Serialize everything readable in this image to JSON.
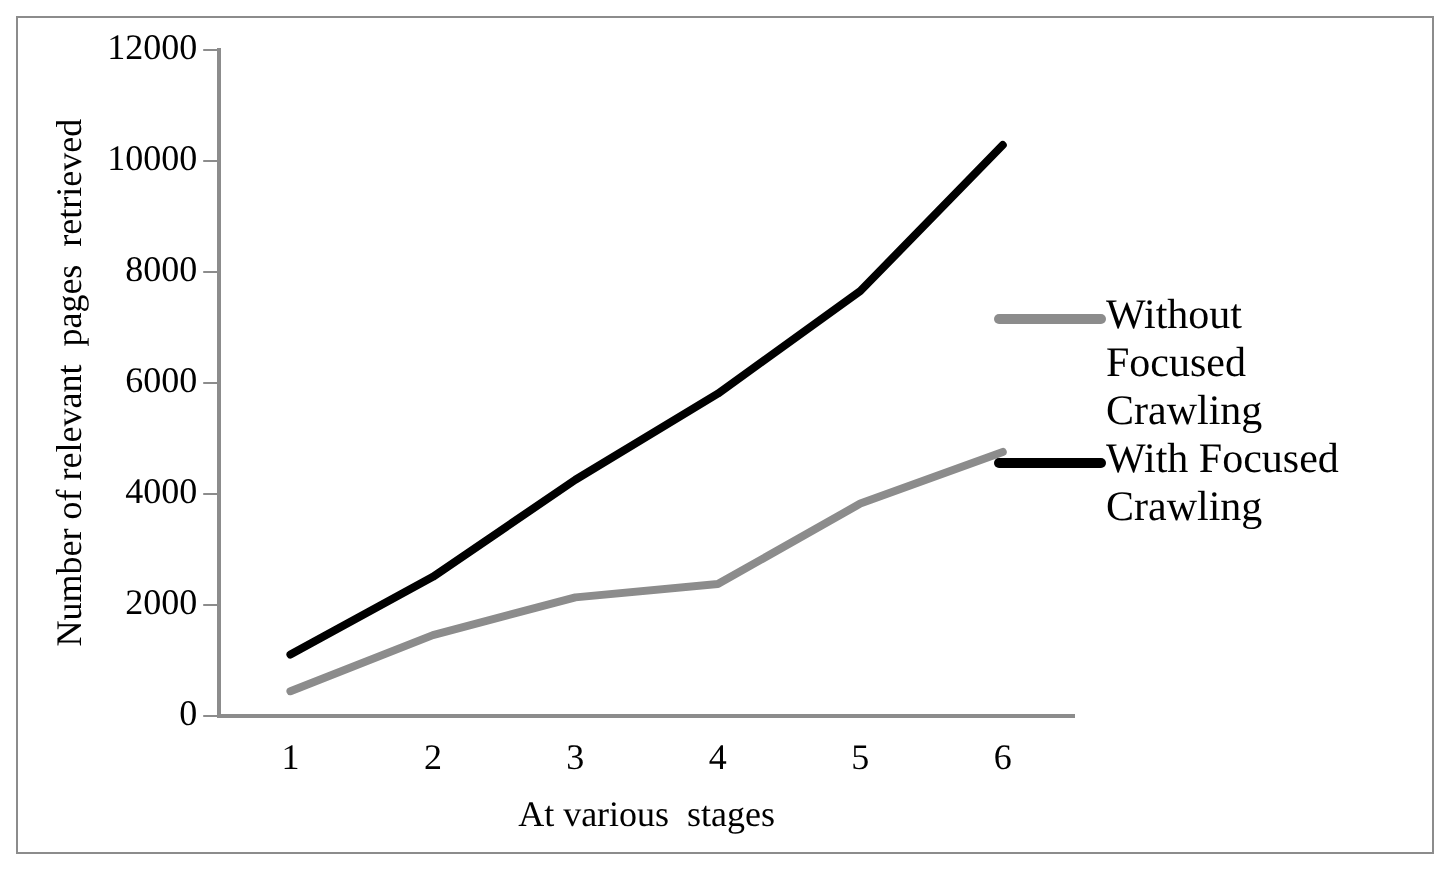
{
  "chart_data": {
    "type": "line",
    "xlabel": "At various  stages",
    "ylabel": "Number of relevant  pages  retrieved",
    "categories": [
      "1",
      "2",
      "3",
      "4",
      "5",
      "6"
    ],
    "series": [
      {
        "name": "Without Focused Crawling",
        "color": "#8c8c8c",
        "values": [
          440,
          1450,
          2130,
          2370,
          3820,
          4750
        ]
      },
      {
        "name": "With Focused Crawling",
        "color": "#000000",
        "values": [
          1100,
          2500,
          4250,
          5800,
          7650,
          10280
        ]
      }
    ],
    "ylim": [
      0,
      12000
    ],
    "yticks": [
      0,
      2000,
      4000,
      6000,
      8000,
      10000,
      12000
    ],
    "grid": false,
    "legend": "right",
    "marker": "none",
    "line_style": "solid"
  }
}
